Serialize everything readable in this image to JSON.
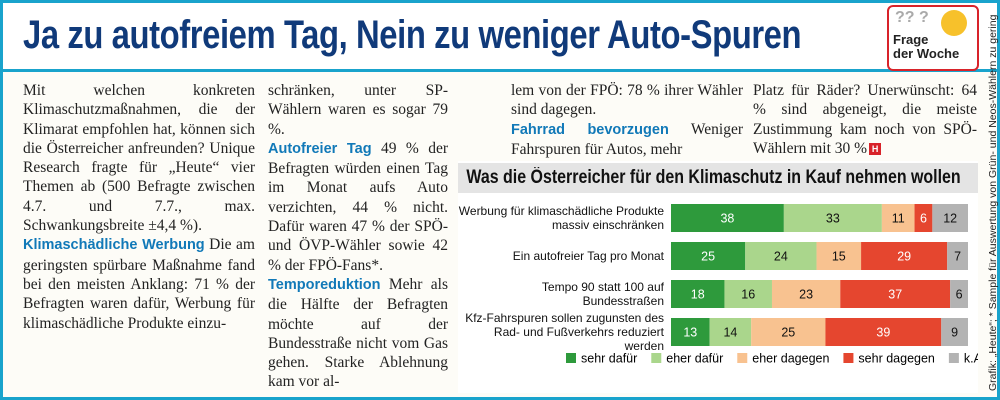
{
  "header": {
    "title": "Ja zu autofreiem Tag, Nein zu weniger Auto-Spuren",
    "badge": [
      "Frage",
      "der Woche"
    ]
  },
  "columns": [
    [
      {
        "text": "Mit welchen konkreten Klimaschutzmaßnahmen, die der Klimarat empfohlen hat, können sich die Österreicher anfreunden? Unique Research fragte für „Heute“ vier Themen ab (500 Befragte zwischen 4.7. und 7.7., max. Schwankungsbreite ±4,4 %)."
      },
      {
        "heading": "Klimaschädliche Werbung",
        "text": "Die am geringsten spürbare Maßnahme fand bei den meisten Anklang: 71 % der Befragten waren dafür, Werbung für klimaschädliche Produkte einzu-"
      }
    ],
    [
      {
        "text": "schränken, unter SP-Wählern waren es sogar 79 %."
      },
      {
        "heading": "Autofreier Tag",
        "text": "49 % der Befragten würden einen Tag im Monat aufs Auto verzichten, 44 % nicht. Dafür waren 47 % der SPÖ- und ÖVP-Wähler sowie 42 % der FPÖ-Fans*."
      },
      {
        "heading": "Temporeduktion",
        "text": "Mehr als die Hälfte der Befragten möchte auf der Bundesstraße nicht vom Gas gehen. Starke Ablehnung kam vor al-"
      }
    ],
    [
      {
        "text": "lem von der FPÖ: 78 % ihrer Wähler sind dagegen."
      },
      {
        "heading": "Fahrrad bevorzugen",
        "text": "Weniger Fahrspuren für Autos, mehr"
      }
    ],
    [
      {
        "text": "Platz für Räder? Unerwünscht: 64 % sind abgeneigt, die meiste Zustimmung kam noch von SPÖ-Wählern mit 30 %"
      }
    ]
  ],
  "source": "Grafik: „Heute“; * Sample für Auswertung von Grün- und Neos-Wählern zu gering",
  "chart_data": {
    "type": "stacked-bar-horizontal",
    "title": "Was die Österreicher für den Klimaschutz in Kauf nehmen wollen",
    "categories": [
      "Werbung für klimaschädliche Produkte massiv einschränken",
      "Ein autofreier Tag pro Monat",
      "Tempo 90 statt 100 auf Bundesstraßen",
      "Kfz-Fahrspuren sollen zugunsten des Rad- und Fußverkehrs reduziert werden"
    ],
    "xlim": [
      0,
      100
    ],
    "series": [
      {
        "name": "sehr dafür",
        "color": "#2e9a3c",
        "values": [
          38,
          25,
          18,
          13
        ]
      },
      {
        "name": "eher dafür",
        "color": "#aad68c",
        "values": [
          33,
          24,
          16,
          14
        ]
      },
      {
        "name": "eher dagegen",
        "color": "#f8c290",
        "values": [
          11,
          15,
          23,
          25
        ]
      },
      {
        "name": "sehr dagegen",
        "color": "#e5462f",
        "values": [
          6,
          29,
          37,
          39
        ]
      },
      {
        "name": "k.A.",
        "color": "#b3b3b3",
        "values": [
          12,
          7,
          6,
          9
        ]
      }
    ]
  }
}
